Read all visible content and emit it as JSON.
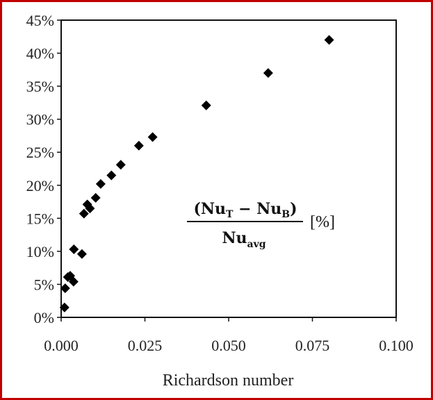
{
  "chart_data": {
    "type": "scatter",
    "title": "",
    "xlabel": "Richardson number",
    "ylabel": "",
    "xlim": [
      0,
      0.1
    ],
    "ylim": [
      0,
      0.45
    ],
    "x_ticks": [
      0,
      0.025,
      0.05,
      0.075,
      0.1
    ],
    "x_tick_labels": [
      "0.000",
      "0.025",
      "0.050",
      "0.075",
      "0.100"
    ],
    "y_ticks": [
      0,
      0.05,
      0.1,
      0.15,
      0.2,
      0.25,
      0.3,
      0.35,
      0.4,
      0.45
    ],
    "y_tick_labels": [
      "0%",
      "5%",
      "10%",
      "15%",
      "20%",
      "25%",
      "30%",
      "35%",
      "40%",
      "45%"
    ],
    "grid": false,
    "marker": "diamond",
    "marker_color": "#000000",
    "annotation": {
      "numerator": [
        "(Nu",
        "T",
        " − Nu",
        "B",
        ")"
      ],
      "denominator": [
        "Nu",
        "avg"
      ],
      "unit": "[%]"
    },
    "series": [
      {
        "points": [
          {
            "x": 0.001,
            "y": 0.015
          },
          {
            "x": 0.0012,
            "y": 0.044
          },
          {
            "x": 0.002,
            "y": 0.061
          },
          {
            "x": 0.0027,
            "y": 0.063
          },
          {
            "x": 0.0037,
            "y": 0.054
          },
          {
            "x": 0.0038,
            "y": 0.103
          },
          {
            "x": 0.0062,
            "y": 0.096
          },
          {
            "x": 0.0068,
            "y": 0.157
          },
          {
            "x": 0.0078,
            "y": 0.171
          },
          {
            "x": 0.0086,
            "y": 0.165
          },
          {
            "x": 0.0103,
            "y": 0.181
          },
          {
            "x": 0.0118,
            "y": 0.202
          },
          {
            "x": 0.015,
            "y": 0.215
          },
          {
            "x": 0.0178,
            "y": 0.231
          },
          {
            "x": 0.0232,
            "y": 0.26
          },
          {
            "x": 0.0273,
            "y": 0.273
          },
          {
            "x": 0.0433,
            "y": 0.321
          },
          {
            "x": 0.0618,
            "y": 0.37
          },
          {
            "x": 0.08,
            "y": 0.42
          }
        ]
      }
    ]
  }
}
